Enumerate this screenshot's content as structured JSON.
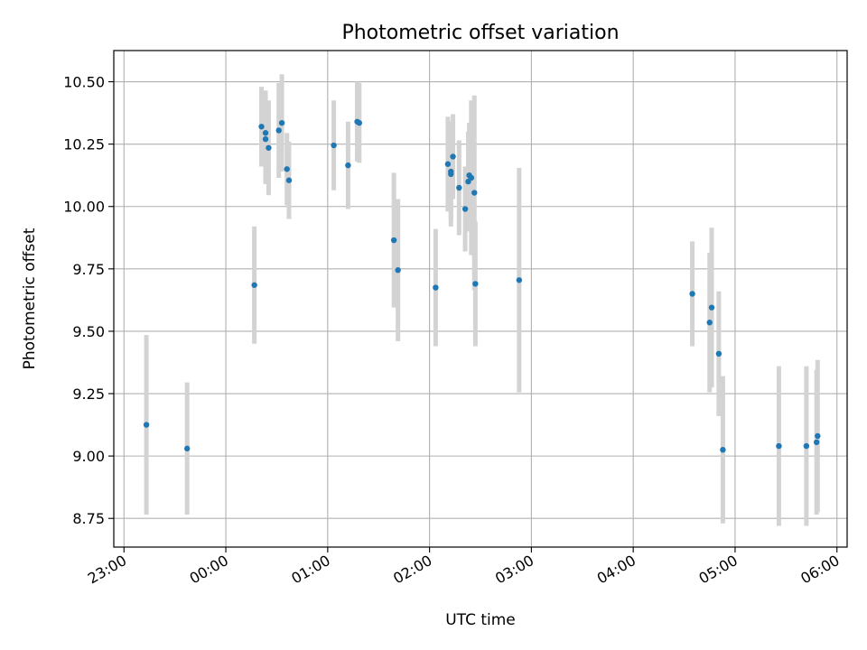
{
  "chart_data": {
    "type": "scatter",
    "title": "Photometric offset variation",
    "xlabel": "UTC time",
    "ylabel": "Photometric offset",
    "grid": true,
    "x_unit": "hours_since_23:00",
    "xlim": [
      -0.1,
      7.1
    ],
    "ylim": [
      8.635,
      10.625
    ],
    "xticks": [
      {
        "value": 0,
        "label": "23:00"
      },
      {
        "value": 1,
        "label": "00:00"
      },
      {
        "value": 2,
        "label": "01:00"
      },
      {
        "value": 3,
        "label": "02:00"
      },
      {
        "value": 4,
        "label": "03:00"
      },
      {
        "value": 5,
        "label": "04:00"
      },
      {
        "value": 6,
        "label": "05:00"
      },
      {
        "value": 7,
        "label": "06:00"
      }
    ],
    "yticks": [
      {
        "value": 8.75,
        "label": "8.75"
      },
      {
        "value": 9.0,
        "label": "9.00"
      },
      {
        "value": 9.25,
        "label": "9.25"
      },
      {
        "value": 9.5,
        "label": "9.50"
      },
      {
        "value": 9.75,
        "label": "9.75"
      },
      {
        "value": 10.0,
        "label": "10.00"
      },
      {
        "value": 10.25,
        "label": "10.25"
      },
      {
        "value": 10.5,
        "label": "10.50"
      }
    ],
    "point_color": "#1f77b4",
    "errorbar_color": "#d3d3d3",
    "points": [
      {
        "x": 0.22,
        "y": 9.125,
        "err": 0.36
      },
      {
        "x": 0.62,
        "y": 9.03,
        "err": 0.265
      },
      {
        "x": 1.28,
        "y": 9.685,
        "err": 0.235
      },
      {
        "x": 1.35,
        "y": 10.32,
        "err": 0.16
      },
      {
        "x": 1.39,
        "y": 10.295,
        "err": 0.17
      },
      {
        "x": 1.39,
        "y": 10.27,
        "err": 0.18
      },
      {
        "x": 1.42,
        "y": 10.235,
        "err": 0.19
      },
      {
        "x": 1.52,
        "y": 10.305,
        "err": 0.19
      },
      {
        "x": 1.55,
        "y": 10.335,
        "err": 0.195
      },
      {
        "x": 1.6,
        "y": 10.15,
        "err": 0.145
      },
      {
        "x": 1.62,
        "y": 10.105,
        "err": 0.155
      },
      {
        "x": 2.06,
        "y": 10.245,
        "err": 0.18
      },
      {
        "x": 2.2,
        "y": 10.165,
        "err": 0.175
      },
      {
        "x": 2.29,
        "y": 10.34,
        "err": 0.16
      },
      {
        "x": 2.31,
        "y": 10.335,
        "err": 0.16
      },
      {
        "x": 2.65,
        "y": 9.865,
        "err": 0.27
      },
      {
        "x": 2.69,
        "y": 9.745,
        "err": 0.285
      },
      {
        "x": 3.06,
        "y": 9.675,
        "err": 0.235
      },
      {
        "x": 3.18,
        "y": 10.17,
        "err": 0.19
      },
      {
        "x": 3.21,
        "y": 10.14,
        "err": 0.2
      },
      {
        "x": 3.21,
        "y": 10.13,
        "err": 0.21
      },
      {
        "x": 3.23,
        "y": 10.2,
        "err": 0.17
      },
      {
        "x": 3.29,
        "y": 10.075,
        "err": 0.19
      },
      {
        "x": 3.35,
        "y": 9.99,
        "err": 0.17
      },
      {
        "x": 3.38,
        "y": 10.1,
        "err": 0.2
      },
      {
        "x": 3.39,
        "y": 10.125,
        "err": 0.21
      },
      {
        "x": 3.41,
        "y": 10.115,
        "err": 0.31
      },
      {
        "x": 3.44,
        "y": 10.055,
        "err": 0.39
      },
      {
        "x": 3.45,
        "y": 9.69,
        "err": 0.25
      },
      {
        "x": 3.88,
        "y": 9.705,
        "err": 0.45
      },
      {
        "x": 5.58,
        "y": 9.65,
        "err": 0.21
      },
      {
        "x": 5.75,
        "y": 9.535,
        "err": 0.28
      },
      {
        "x": 5.77,
        "y": 9.595,
        "err": 0.32
      },
      {
        "x": 5.84,
        "y": 9.41,
        "err": 0.25
      },
      {
        "x": 5.88,
        "y": 9.025,
        "err": 0.295
      },
      {
        "x": 6.43,
        "y": 9.04,
        "err": 0.32
      },
      {
        "x": 6.7,
        "y": 9.04,
        "err": 0.32
      },
      {
        "x": 6.8,
        "y": 9.055,
        "err": 0.29
      },
      {
        "x": 6.81,
        "y": 9.08,
        "err": 0.305
      }
    ]
  }
}
